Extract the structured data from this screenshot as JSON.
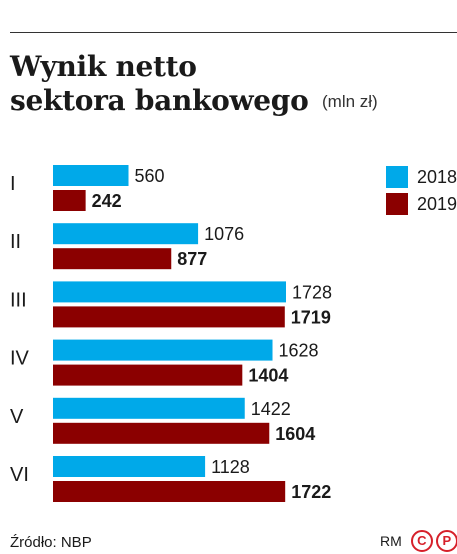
{
  "header": {
    "title_line1": "Wynik netto",
    "title_line2": "sektora bankowego",
    "unit": "(mln zł)"
  },
  "legend": [
    {
      "label": "2018",
      "color": "#00a9e9"
    },
    {
      "label": "2019",
      "color": "#8b0000"
    }
  ],
  "footer": {
    "source": "Źródło: NBP",
    "credit": "RM",
    "logo_c": "C",
    "logo_p": "P"
  },
  "chart_data": {
    "type": "bar",
    "orientation": "horizontal",
    "categories": [
      "I",
      "II",
      "III",
      "IV",
      "V",
      "VI"
    ],
    "series": [
      {
        "name": "2018",
        "color": "#00a9e9",
        "values": [
          560,
          1076,
          1728,
          1628,
          1422,
          1128
        ]
      },
      {
        "name": "2019",
        "color": "#8b0000",
        "values": [
          242,
          877,
          1719,
          1404,
          1604,
          1722
        ]
      }
    ],
    "xlim": [
      0,
      1728
    ],
    "grid": false,
    "legend_position": "top-right"
  }
}
